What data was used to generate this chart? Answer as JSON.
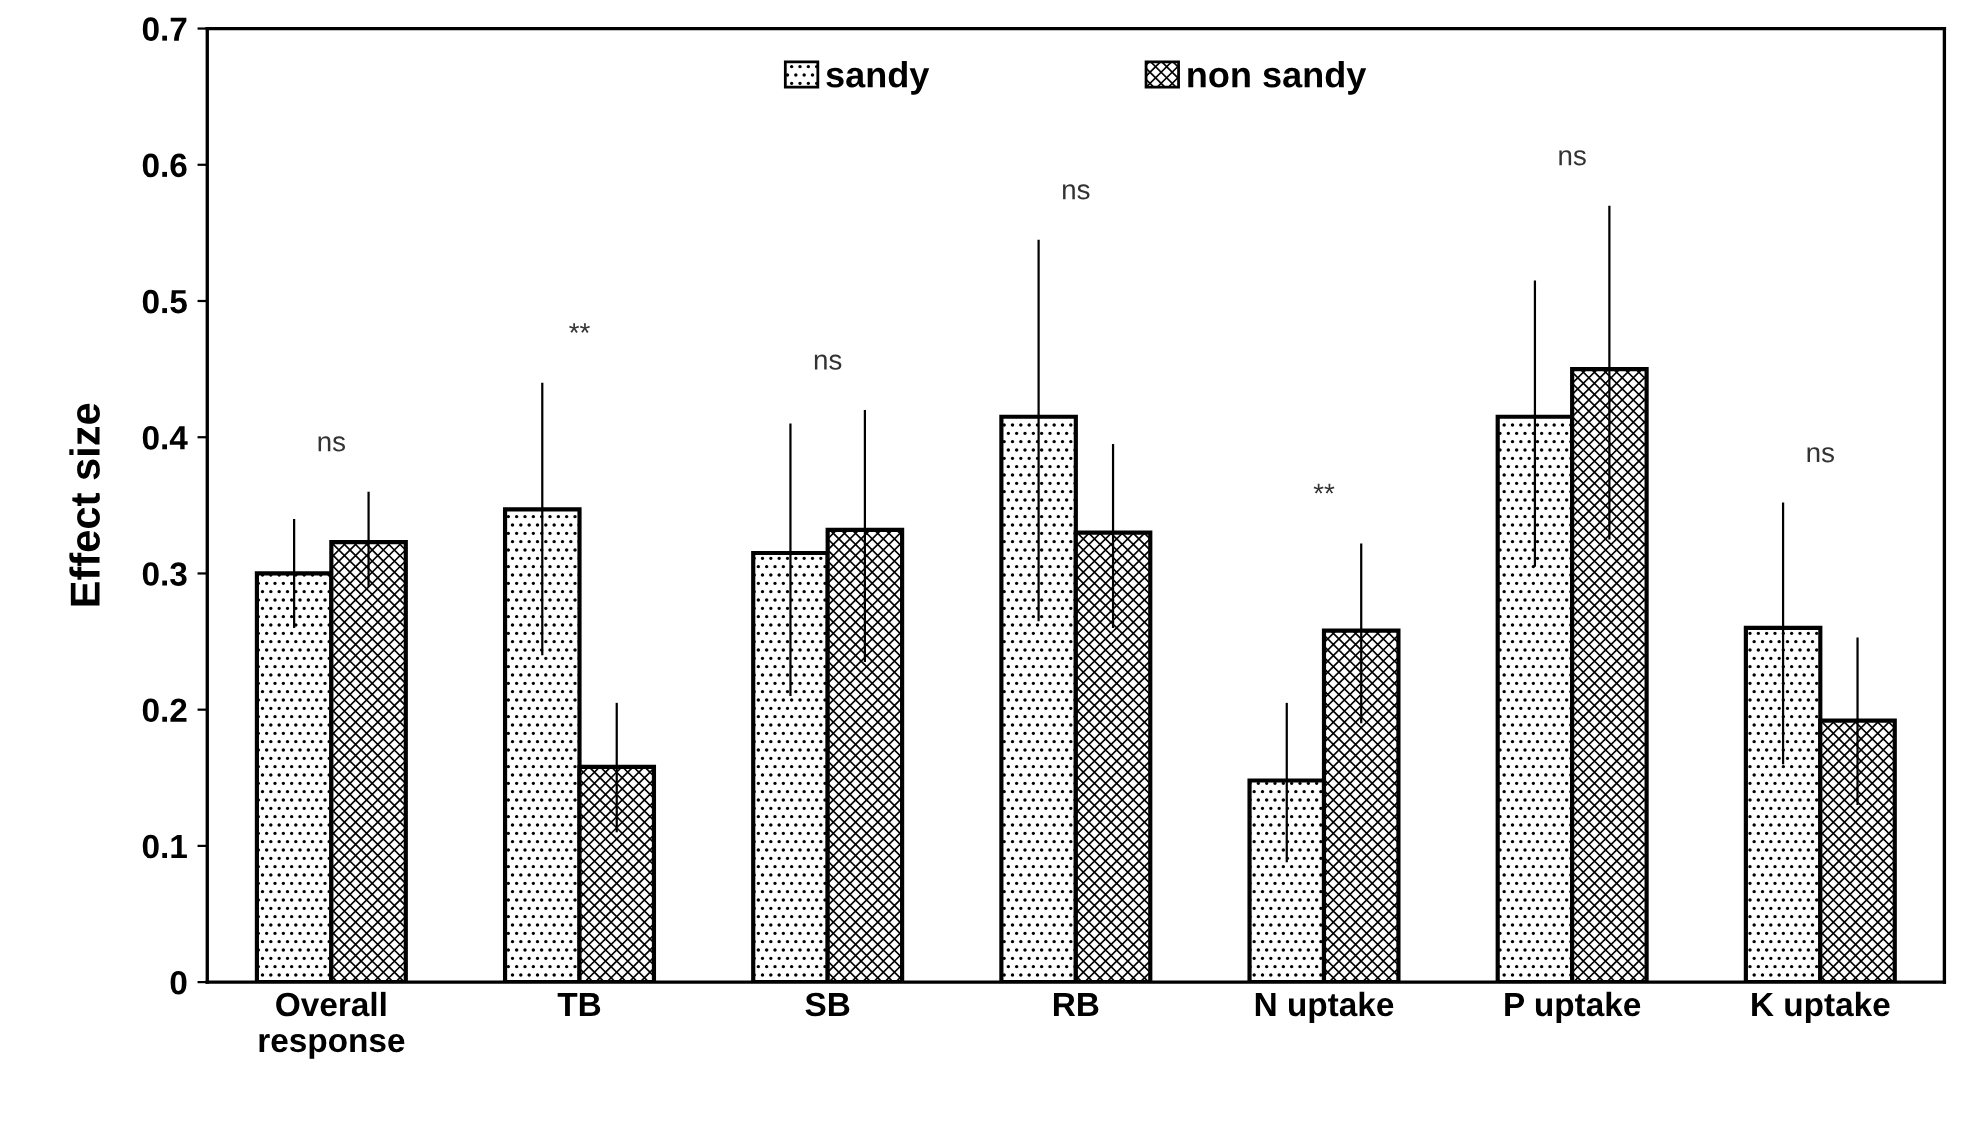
{
  "chart_data": {
    "type": "bar",
    "ylabel": "Effect size",
    "categories": [
      "Overall\nresponse",
      "TB",
      "SB",
      "RB",
      "N uptake",
      "P uptake",
      "K uptake"
    ],
    "series": [
      {
        "name": "sandy",
        "color": "#000000",
        "values": [
          0.3,
          0.347,
          0.315,
          0.415,
          0.148,
          0.415,
          0.26
        ],
        "errors": [
          [
            0.26,
            0.34
          ],
          [
            0.24,
            0.44
          ],
          [
            0.21,
            0.41
          ],
          [
            0.265,
            0.545
          ],
          [
            0.088,
            0.205
          ],
          [
            0.305,
            0.515
          ],
          [
            0.16,
            0.352
          ]
        ]
      },
      {
        "name": "non sandy",
        "color": "#000000",
        "values": [
          0.323,
          0.158,
          0.332,
          0.33,
          0.258,
          0.45,
          0.192
        ],
        "errors": [
          [
            0.29,
            0.36
          ],
          [
            0.11,
            0.205
          ],
          [
            0.235,
            0.42
          ],
          [
            0.26,
            0.395
          ],
          [
            0.19,
            0.322
          ],
          [
            0.325,
            0.57
          ],
          [
            0.13,
            0.253
          ]
        ]
      }
    ],
    "annotations": [
      "ns",
      "**",
      "ns",
      "ns",
      "**",
      "ns",
      "ns"
    ],
    "ylim": [
      0,
      0.7
    ],
    "yticks": [
      0,
      0.1,
      0.2,
      0.3,
      0.4,
      0.5,
      0.6,
      0.7
    ],
    "grid": false,
    "legend": "top"
  }
}
